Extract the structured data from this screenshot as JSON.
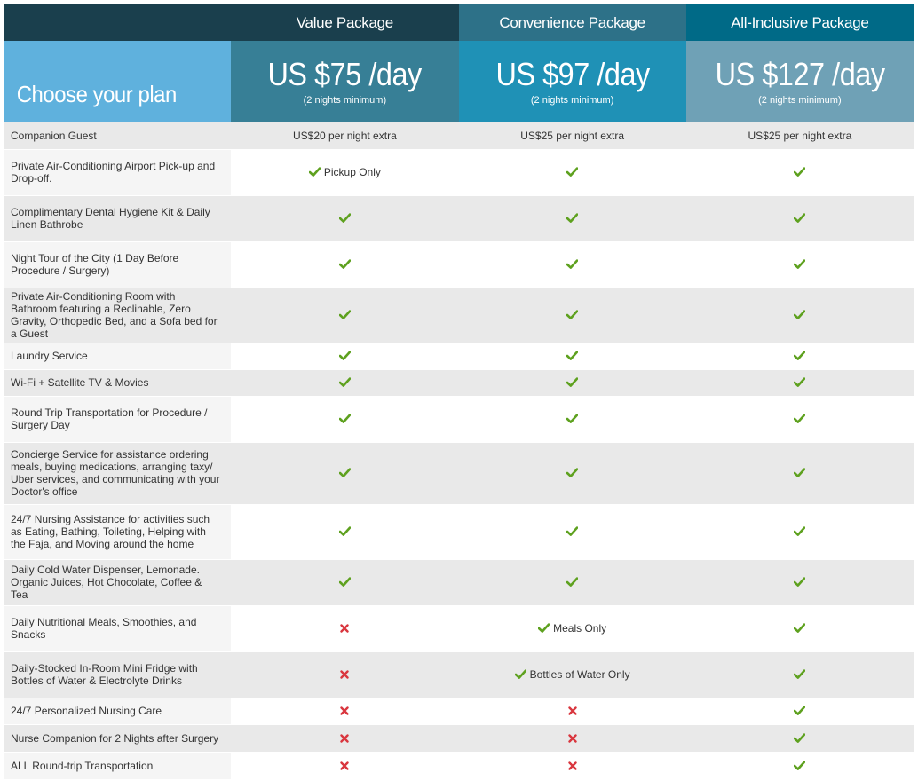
{
  "header": {
    "packages": [
      "Value Package",
      "Convenience Package",
      "All-Inclusive Package"
    ],
    "choose_label": "Choose your plan",
    "prices": [
      {
        "amount": "US $75 /day",
        "note": "(2 nights minimum)"
      },
      {
        "amount": "US $97 /day",
        "note": "(2 nights minimum)"
      },
      {
        "amount": "US $127 /day",
        "note": "(2 nights minimum)"
      }
    ]
  },
  "colors": {
    "check": "#5ea11f",
    "cross": "#d9363e",
    "header_dark": "#1a3f4d",
    "choose_bg": "#5fb1dd"
  },
  "icons": {
    "included": "checkmark-icon",
    "excluded": "cross-icon"
  },
  "rows": [
    {
      "feature": "Companion Guest",
      "cells": [
        {
          "text": "US$20 per night extra"
        },
        {
          "text": "US$25 per night extra"
        },
        {
          "text": "US$25 per night extra"
        }
      ]
    },
    {
      "feature": "Private Air-Conditioning Airport Pick-up and Drop-off.",
      "cells": [
        {
          "icon": "check",
          "text": "Pickup Only"
        },
        {
          "icon": "check"
        },
        {
          "icon": "check"
        }
      ]
    },
    {
      "feature": "Complimentary Dental Hygiene Kit & Daily Linen Bathrobe",
      "cells": [
        {
          "icon": "check"
        },
        {
          "icon": "check"
        },
        {
          "icon": "check"
        }
      ]
    },
    {
      "feature": "Night Tour of the City (1 Day Before Procedure / Surgery)",
      "cells": [
        {
          "icon": "check"
        },
        {
          "icon": "check"
        },
        {
          "icon": "check"
        }
      ]
    },
    {
      "feature": "Private Air-Conditioning Room with Bathroom featuring a Reclinable, Zero Gravity, Orthopedic Bed, and a Sofa bed for a Guest",
      "cells": [
        {
          "icon": "check"
        },
        {
          "icon": "check"
        },
        {
          "icon": "check"
        }
      ]
    },
    {
      "feature": "Laundry Service",
      "cells": [
        {
          "icon": "check"
        },
        {
          "icon": "check"
        },
        {
          "icon": "check"
        }
      ]
    },
    {
      "feature": "Wi-Fi + Satellite TV & Movies",
      "cells": [
        {
          "icon": "check"
        },
        {
          "icon": "check"
        },
        {
          "icon": "check"
        }
      ]
    },
    {
      "feature": "Round Trip Transportation for Procedure / Surgery Day",
      "cells": [
        {
          "icon": "check"
        },
        {
          "icon": "check"
        },
        {
          "icon": "check"
        }
      ]
    },
    {
      "feature": "Concierge Service for assistance ordering meals, buying medications, arranging taxy/ Uber services, and communicating with your Doctor's office",
      "cells": [
        {
          "icon": "check"
        },
        {
          "icon": "check"
        },
        {
          "icon": "check"
        }
      ]
    },
    {
      "feature": "24/7 Nursing Assistance for activities such as Eating, Bathing, Toileting, Helping with the Faja, and Moving around the home",
      "cells": [
        {
          "icon": "check"
        },
        {
          "icon": "check"
        },
        {
          "icon": "check"
        }
      ]
    },
    {
      "feature": "Daily Cold Water Dispenser, Lemonade. Organic Juices, Hot Chocolate, Coffee & Tea",
      "cells": [
        {
          "icon": "check"
        },
        {
          "icon": "check"
        },
        {
          "icon": "check"
        }
      ]
    },
    {
      "feature": "Daily Nutritional Meals, Smoothies, and Snacks",
      "cells": [
        {
          "icon": "cross"
        },
        {
          "icon": "check",
          "text": "Meals Only"
        },
        {
          "icon": "check"
        }
      ]
    },
    {
      "feature": "Daily-Stocked In-Room Mini Fridge with Bottles of Water & Electrolyte Drinks",
      "cells": [
        {
          "icon": "cross"
        },
        {
          "icon": "check",
          "text": "Bottles of Water Only"
        },
        {
          "icon": "check"
        }
      ]
    },
    {
      "feature": "24/7 Personalized Nursing Care",
      "cells": [
        {
          "icon": "cross"
        },
        {
          "icon": "cross"
        },
        {
          "icon": "check"
        }
      ]
    },
    {
      "feature": "Nurse Companion for 2 Nights after Surgery",
      "cells": [
        {
          "icon": "cross"
        },
        {
          "icon": "cross"
        },
        {
          "icon": "check"
        }
      ]
    },
    {
      "feature": "ALL Round-trip Transportation",
      "cells": [
        {
          "icon": "cross"
        },
        {
          "icon": "cross"
        },
        {
          "icon": "check"
        }
      ]
    }
  ]
}
